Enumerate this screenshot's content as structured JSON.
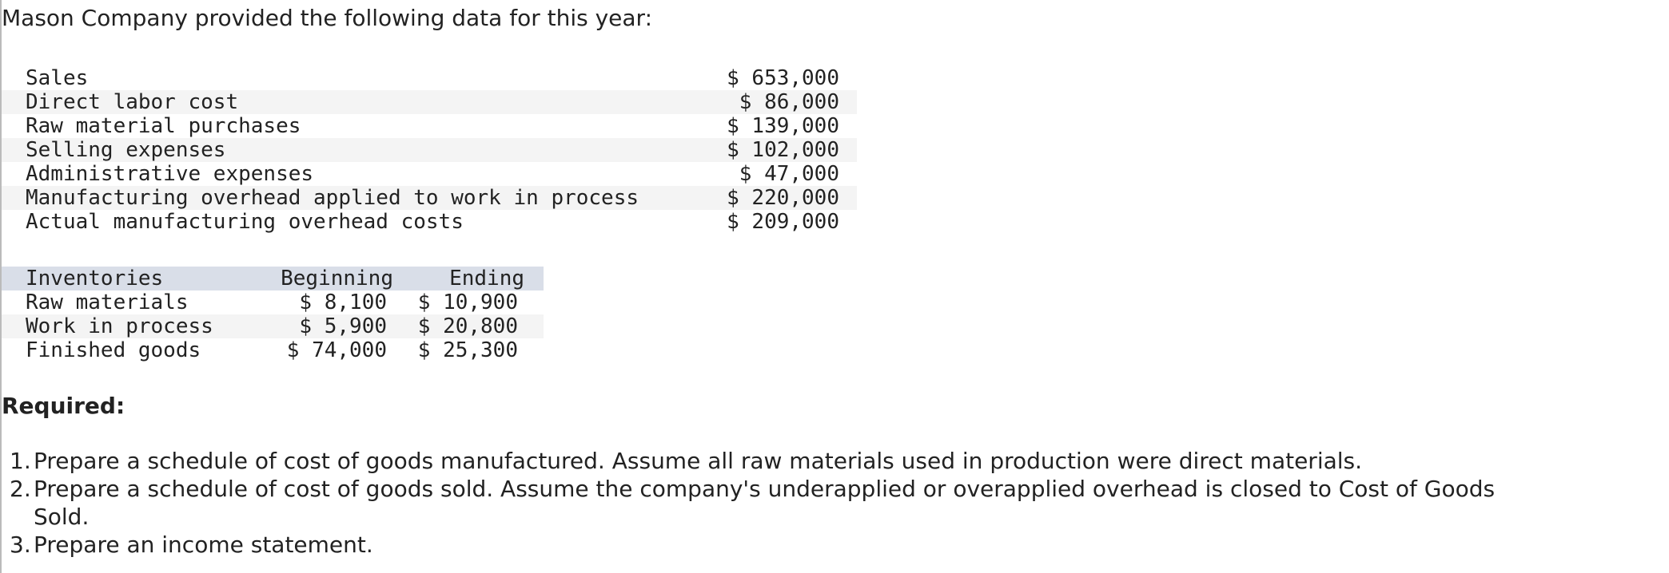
{
  "intro": "Mason Company provided the following data for this year:",
  "table1": {
    "rows": [
      [
        "Sales",
        "$ 653,000"
      ],
      [
        "Direct labor cost",
        "$ 86,000"
      ],
      [
        "Raw material purchases",
        "$ 139,000"
      ],
      [
        "Selling expenses",
        "$ 102,000"
      ],
      [
        "Administrative expenses",
        "$ 47,000"
      ],
      [
        "Manufacturing overhead applied to work in process",
        "$ 220,000"
      ],
      [
        "Actual manufacturing overhead costs",
        "$ 209,000"
      ]
    ]
  },
  "table2": {
    "header": [
      "Inventories",
      "Beginning",
      "Ending"
    ],
    "rows": [
      [
        "Raw materials",
        "$ 8,100",
        "$ 10,900"
      ],
      [
        "Work in process",
        "$ 5,900",
        "$ 20,800"
      ],
      [
        "Finished goods",
        "$ 74,000",
        "$ 25,300"
      ]
    ]
  },
  "required": {
    "title": "Required:",
    "items": [
      {
        "number": "1.",
        "text": "Prepare a schedule of cost of goods manufactured. Assume all raw materials used in production were direct materials."
      },
      {
        "number": "2.",
        "text": "Prepare a schedule of cost of goods sold. Assume the company's underapplied or overapplied overhead is closed to Cost of Goods Sold."
      },
      {
        "number": "3.",
        "text": "Prepare an income statement."
      }
    ]
  }
}
